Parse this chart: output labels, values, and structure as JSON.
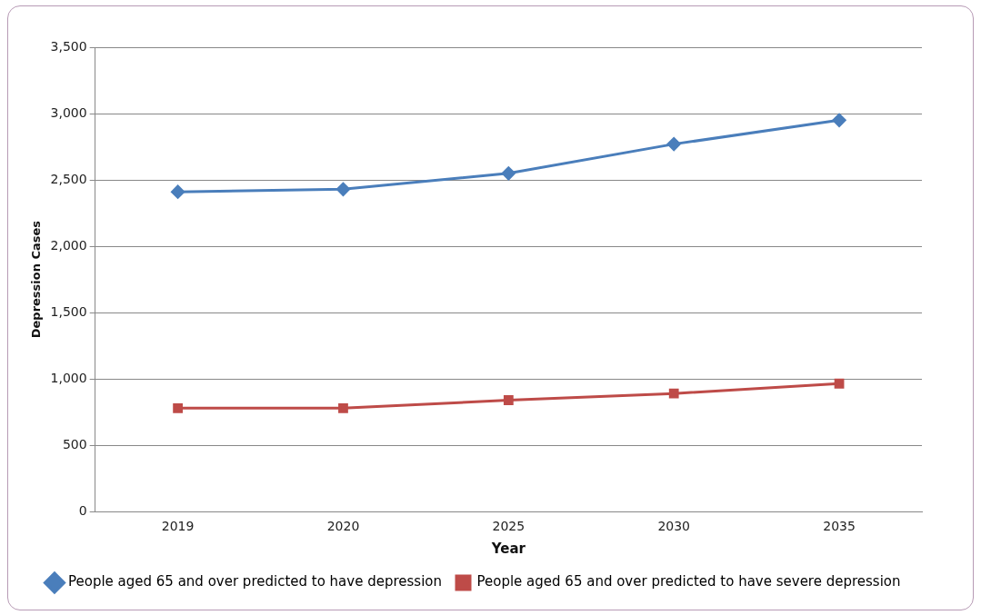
{
  "chart_data": {
    "type": "line",
    "xlabel": "Year",
    "ylabel": "Depression Cases",
    "categories": [
      "2019",
      "2020",
      "2025",
      "2030",
      "2035"
    ],
    "series": [
      {
        "name": "People aged 65 and over predicted to have depression",
        "color": "#4a7ebb",
        "marker": "diamond",
        "values": [
          2410,
          2430,
          2550,
          2770,
          2950
        ]
      },
      {
        "name": "People aged 65 and over predicted to have severe depression",
        "color": "#be4b48",
        "marker": "square",
        "values": [
          780,
          780,
          840,
          890,
          965
        ]
      }
    ],
    "ylim": [
      0,
      3500
    ],
    "yticks": [
      0,
      500,
      {
        "value": 1000,
        "label": "1,000"
      },
      {
        "value": 1500,
        "label": "1,500"
      },
      {
        "value": 2000,
        "label": "2,000"
      },
      {
        "value": 2500,
        "label": "2,500"
      },
      {
        "value": 3000,
        "label": "3,000"
      },
      {
        "value": 3500,
        "label": "3,500"
      }
    ],
    "grid": "y",
    "legend": "bottom"
  }
}
